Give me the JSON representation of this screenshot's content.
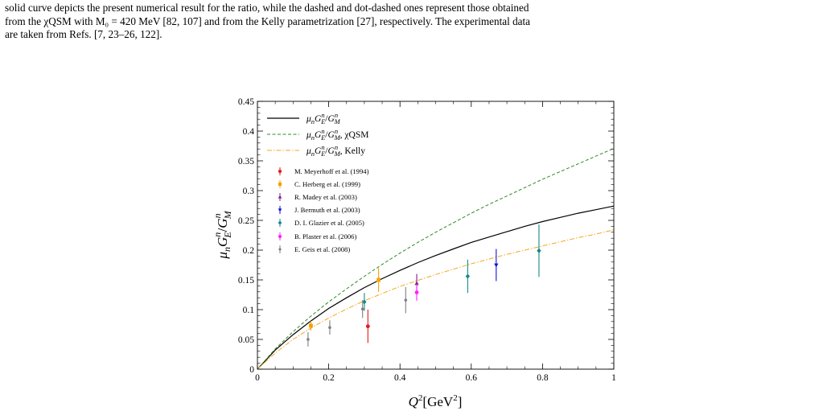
{
  "caption": {
    "line1": "solid curve depicts the present numerical result for the ratio, while the dashed and dot-dashed ones represent those obtained",
    "line2": "from the χQSM with M₀ = 420 MeV [82, 107] and from the Kelly parametrization [27], respectively. The experimental data",
    "line3": "are taken from Refs. [7, 23–26, 122]."
  },
  "chart_data": {
    "type": "line",
    "xlabel": "Q²[GeV²]",
    "ylabel": "μnGEn/GMn",
    "xlim": [
      0,
      1
    ],
    "ylim": [
      0,
      0.45
    ],
    "xticks": [
      "0",
      "0.2",
      "0.4",
      "0.6",
      "0.8",
      "1"
    ],
    "yticks": [
      "0",
      "0.05",
      "0.1",
      "0.15",
      "0.2",
      "0.25",
      "0.3",
      "0.35",
      "0.4",
      "0.45"
    ],
    "legend_position": "top-left",
    "series": [
      {
        "name": "μnGEn/GMn",
        "style": "solid",
        "color": "#000000",
        "x": [
          0,
          0.05,
          0.1,
          0.15,
          0.2,
          0.25,
          0.3,
          0.35,
          0.4,
          0.45,
          0.5,
          0.55,
          0.6,
          0.65,
          0.7,
          0.75,
          0.8,
          0.85,
          0.9,
          0.95,
          1.0
        ],
        "y": [
          0,
          0.032,
          0.058,
          0.081,
          0.102,
          0.12,
          0.137,
          0.152,
          0.166,
          0.179,
          0.191,
          0.202,
          0.213,
          0.222,
          0.231,
          0.24,
          0.248,
          0.255,
          0.262,
          0.268,
          0.274
        ]
      },
      {
        "name": "μnGEn/GMn, χQSM",
        "style": "dashed",
        "color": "#2e8b22",
        "x": [
          0,
          0.05,
          0.1,
          0.15,
          0.2,
          0.25,
          0.3,
          0.35,
          0.4,
          0.45,
          0.5,
          0.55,
          0.6,
          0.65,
          0.7,
          0.75,
          0.8,
          0.85,
          0.9,
          0.95,
          1.0
        ],
        "y": [
          0,
          0.034,
          0.063,
          0.089,
          0.113,
          0.135,
          0.156,
          0.176,
          0.195,
          0.213,
          0.23,
          0.246,
          0.262,
          0.277,
          0.291,
          0.305,
          0.319,
          0.332,
          0.345,
          0.358,
          0.371
        ]
      },
      {
        "name": "μnGEn/GMn, Kelly",
        "style": "dashdot",
        "color": "#f5a623",
        "x": [
          0,
          0.05,
          0.1,
          0.15,
          0.2,
          0.25,
          0.3,
          0.35,
          0.4,
          0.45,
          0.5,
          0.55,
          0.6,
          0.65,
          0.7,
          0.75,
          0.8,
          0.85,
          0.9,
          0.95,
          1.0
        ],
        "y": [
          0,
          0.027,
          0.05,
          0.069,
          0.086,
          0.101,
          0.115,
          0.127,
          0.139,
          0.149,
          0.159,
          0.168,
          0.177,
          0.185,
          0.193,
          0.2,
          0.207,
          0.214,
          0.221,
          0.227,
          0.234
        ]
      }
    ],
    "experiments": [
      {
        "name": "M. Meyerhoff et al. (1994)",
        "color": "#e41a1c",
        "marker": "circle",
        "points": [
          {
            "x": 0.31,
            "y": 0.072,
            "err": 0.028
          }
        ]
      },
      {
        "name": "C. Herberg et al. (1999)",
        "color": "#f5a000",
        "marker": "square",
        "points": [
          {
            "x": 0.15,
            "y": 0.073,
            "err": 0.008
          },
          {
            "x": 0.34,
            "y": 0.15,
            "err": 0.02
          }
        ]
      },
      {
        "name": "R. Madey et al. (2003)",
        "color": "#7b1f8a",
        "marker": "triangle-up",
        "points": [
          {
            "x": 0.447,
            "y": 0.144,
            "err": 0.016
          }
        ]
      },
      {
        "name": "J. Bermuth et al. (2003)",
        "color": "#1010d8",
        "marker": "triangle-down",
        "points": [
          {
            "x": 0.67,
            "y": 0.175,
            "err": 0.027
          }
        ]
      },
      {
        "name": "D. I. Glazier et al. (2005)",
        "color": "#138a85",
        "marker": "diamond",
        "points": [
          {
            "x": 0.3,
            "y": 0.113,
            "err": 0.015
          },
          {
            "x": 0.59,
            "y": 0.156,
            "err": 0.028
          },
          {
            "x": 0.79,
            "y": 0.199,
            "err": 0.044
          }
        ]
      },
      {
        "name": "B. Plaster et al. (2006)",
        "color": "#ff22ff",
        "marker": "circle",
        "points": [
          {
            "x": 0.447,
            "y": 0.129,
            "err": 0.014
          }
        ]
      },
      {
        "name": "E. Geis et al. (2008)",
        "color": "#808080",
        "marker": "small-circle",
        "points": [
          {
            "x": 0.142,
            "y": 0.05,
            "err": 0.012
          },
          {
            "x": 0.203,
            "y": 0.07,
            "err": 0.012
          },
          {
            "x": 0.295,
            "y": 0.101,
            "err": 0.015
          },
          {
            "x": 0.416,
            "y": 0.116,
            "err": 0.022
          }
        ]
      }
    ]
  }
}
